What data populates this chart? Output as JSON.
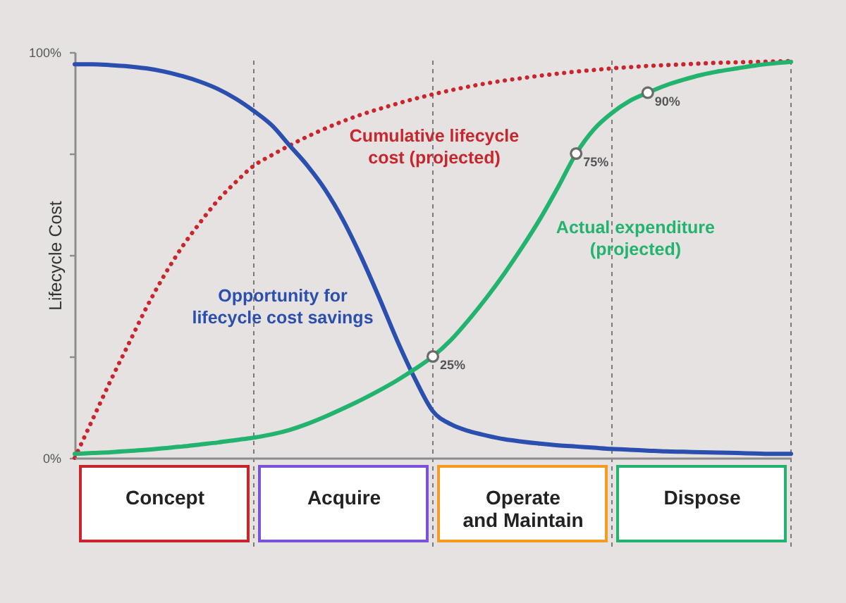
{
  "chart_data": {
    "type": "line",
    "ylabel": "Lifecycle Cost",
    "ylim": [
      0,
      100
    ],
    "grid": "x",
    "categories": [
      null,
      null,
      null,
      null,
      null,
      "Concept",
      null,
      null,
      null,
      null,
      null,
      null,
      null,
      null,
      null,
      "Acquire",
      null,
      null,
      null,
      null,
      null,
      null,
      null,
      null,
      null,
      "Operate and Maintain",
      null,
      null,
      null,
      null,
      null,
      null,
      null,
      null,
      null,
      "Dispose",
      null,
      null,
      null,
      null,
      null
    ],
    "yticks": [
      {
        "value": 0,
        "label": "0%"
      },
      {
        "value": 25,
        "label": null
      },
      {
        "value": 50,
        "label": null
      },
      {
        "value": 75,
        "label": null
      },
      {
        "value": 100,
        "label": "100%"
      }
    ],
    "series": [
      {
        "name": "Cumulative lifecycle cost (projected)",
        "color": "#c8262c",
        "line_style": "dotted",
        "values": [
          0,
          9.5,
          19,
          28,
          37,
          45,
          52,
          58,
          63.5,
          68,
          72,
          74.6,
          77,
          79.2,
          81.2,
          83,
          84.6,
          86,
          87.3,
          88.5,
          89.6,
          90.6,
          91.5,
          92.3,
          93,
          93.6,
          94.2,
          94.7,
          95.2,
          95.6,
          96,
          96.3,
          96.6,
          96.8,
          97,
          97.2,
          97.4,
          97.5,
          97.6,
          97.7,
          97.8
        ]
      },
      {
        "name": "Opportunity for lifecycle cost savings",
        "color": "#2b4fae",
        "line_style": "solid",
        "values": [
          97,
          97,
          96.8,
          96.5,
          96,
          95.2,
          94.1,
          92.7,
          90.9,
          88.5,
          85.5,
          82,
          77,
          72,
          66,
          58.5,
          49.5,
          39.5,
          29,
          19.5,
          11.5,
          8.3,
          6.6,
          5.5,
          4.6,
          4,
          3.5,
          3.1,
          2.8,
          2.5,
          2.2,
          2,
          1.8,
          1.6,
          1.5,
          1.4,
          1.3,
          1.2,
          1.1,
          1,
          1
        ]
      },
      {
        "name": "Actual expenditure (projected)",
        "color": "#22b46e",
        "line_style": "solid",
        "values": [
          1,
          1.2,
          1.4,
          1.7,
          2,
          2.4,
          2.8,
          3.3,
          3.8,
          4.4,
          5,
          5.8,
          6.9,
          8.4,
          10.2,
          12.2,
          14.3,
          16.6,
          19.1,
          21.9,
          25,
          29,
          34,
          39.5,
          45.5,
          52,
          59,
          66.8,
          75,
          81,
          85,
          88,
          90,
          91.8,
          93.2,
          94.4,
          95.3,
          96,
          96.7,
          97.2,
          97.6
        ]
      },
      {
        "type": "scatter",
        "color": "#6a6a6a",
        "marker": "circle",
        "values": [
          null,
          null,
          null,
          null,
          null,
          null,
          null,
          null,
          null,
          null,
          null,
          null,
          null,
          null,
          null,
          null,
          null,
          null,
          null,
          null,
          25,
          null,
          null,
          null,
          null,
          null,
          null,
          null,
          75,
          null,
          null,
          null,
          90,
          null,
          null,
          null,
          null,
          null,
          null,
          null,
          null
        ],
        "value_labels": [
          null,
          null,
          null,
          null,
          null,
          null,
          null,
          null,
          null,
          null,
          null,
          null,
          null,
          null,
          null,
          null,
          null,
          null,
          null,
          null,
          "25%",
          null,
          null,
          null,
          null,
          null,
          null,
          null,
          "75%",
          null,
          null,
          null,
          "90%",
          null,
          null,
          null,
          null,
          null,
          null,
          null,
          null
        ]
      }
    ]
  }
}
